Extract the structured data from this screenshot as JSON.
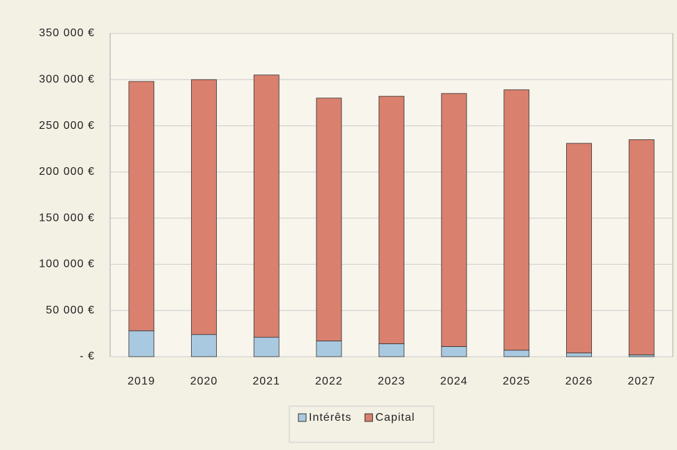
{
  "chart_data": {
    "type": "stacked_bar",
    "categories": [
      "2019",
      "2020",
      "2021",
      "2022",
      "2023",
      "2024",
      "2025",
      "2026",
      "2027"
    ],
    "series": [
      {
        "name": "Intérêts",
        "color": "#a9c9e0",
        "values": [
          28000,
          24000,
          21000,
          17000,
          14000,
          11000,
          7000,
          4000,
          2000
        ]
      },
      {
        "name": "Capital",
        "color": "#d9806f",
        "values": [
          270000,
          276000,
          284000,
          263000,
          268000,
          274000,
          282000,
          227000,
          233000
        ]
      }
    ],
    "ylim": [
      0,
      350000
    ],
    "yticks": [
      {
        "value": 0,
        "label": "- €"
      },
      {
        "value": 50000,
        "label": "50 000 €"
      },
      {
        "value": 100000,
        "label": "100 000 €"
      },
      {
        "value": 150000,
        "label": "150 000 €"
      },
      {
        "value": 200000,
        "label": "200 000 €"
      },
      {
        "value": 250000,
        "label": "250 000 €"
      },
      {
        "value": 300000,
        "label": "300 000 €"
      },
      {
        "value": 350000,
        "label": "350 000 €"
      }
    ],
    "grid": true
  }
}
